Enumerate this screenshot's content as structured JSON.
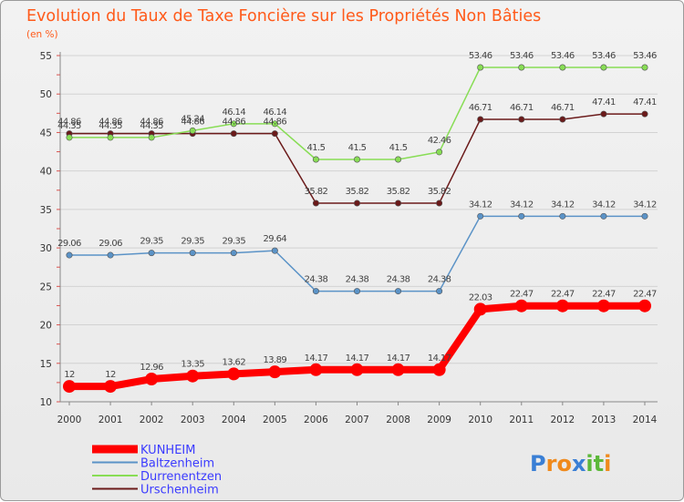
{
  "chart_data": {
    "type": "line",
    "title": "Evolution du Taux de Taxe Foncière sur les Propriétés Non Bâties",
    "subtitle": "(en %)",
    "x": [
      "2000",
      "2001",
      "2002",
      "2003",
      "2004",
      "2005",
      "2006",
      "2007",
      "2008",
      "2009",
      "2010",
      "2011",
      "2012",
      "2013",
      "2014"
    ],
    "ylim": [
      10,
      55
    ],
    "yticks": [
      10,
      15,
      20,
      25,
      30,
      35,
      40,
      45,
      50,
      55
    ],
    "grid": "horizontal",
    "legend": "bottom-left",
    "series": [
      {
        "name": "Urschenheim",
        "color": "#6b1a1a",
        "values": [
          44.86,
          44.86,
          44.86,
          44.86,
          44.86,
          44.86,
          35.82,
          35.82,
          35.82,
          35.82,
          46.71,
          46.71,
          46.71,
          47.41,
          47.41
        ],
        "labels": [
          "44.86",
          "44.86",
          "44.86",
          "44.86",
          "44.86",
          "44.86",
          "35.82",
          "35.82",
          "35.82",
          "35.82",
          "46.71",
          "46.71",
          "46.71",
          "47.41",
          "47.41"
        ]
      },
      {
        "name": "Durrenentzen",
        "color": "#88dd55",
        "values": [
          44.35,
          44.35,
          44.35,
          45.24,
          46.14,
          46.14,
          41.5,
          41.5,
          41.5,
          42.46,
          53.46,
          53.46,
          53.46,
          53.46,
          53.46
        ],
        "labels": [
          "44.35",
          "44.35",
          "44.35",
          "45.24",
          "46.14",
          "46.14",
          "41.5",
          "41.5",
          "41.5",
          "42.46",
          "53.46",
          "53.46",
          "53.46",
          "53.46",
          "53.46"
        ]
      },
      {
        "name": "Baltzenheim",
        "color": "#5b93c7",
        "values": [
          29.06,
          29.06,
          29.35,
          29.35,
          29.35,
          29.64,
          24.38,
          24.38,
          24.38,
          24.38,
          34.12,
          34.12,
          34.12,
          34.12,
          34.12
        ],
        "labels": [
          "29.06",
          "29.06",
          "29.35",
          "29.35",
          "29.35",
          "29.64",
          "24.38",
          "24.38",
          "24.38",
          "24.38",
          "34.12",
          "34.12",
          "34.12",
          "34.12",
          "34.12"
        ]
      },
      {
        "name": "KUNHEIM",
        "color": "#ff0000",
        "values": [
          12,
          12,
          12.96,
          13.35,
          13.62,
          13.89,
          14.17,
          14.17,
          14.17,
          14.17,
          22.03,
          22.47,
          22.47,
          22.47,
          22.47
        ],
        "labels": [
          "12",
          "12",
          "12.96",
          "13.35",
          "13.62",
          "13.89",
          "14.17",
          "14.17",
          "14.17",
          "14.17",
          "22.03",
          "22.47",
          "22.47",
          "22.47",
          "22.47"
        ]
      }
    ],
    "legend_order": [
      "KUNHEIM",
      "Baltzenheim",
      "Durrenentzen",
      "Urschenheim"
    ]
  },
  "logo": {
    "text": "Proxiti",
    "letters": [
      "P",
      "r",
      "o",
      "x",
      "i",
      "t",
      "i"
    ],
    "colors": [
      "#3a7fd5",
      "#f08a1c",
      "#f08a1c",
      "#3a7fd5",
      "#5cb83a",
      "#5cb83a",
      "#f08a1c"
    ]
  }
}
